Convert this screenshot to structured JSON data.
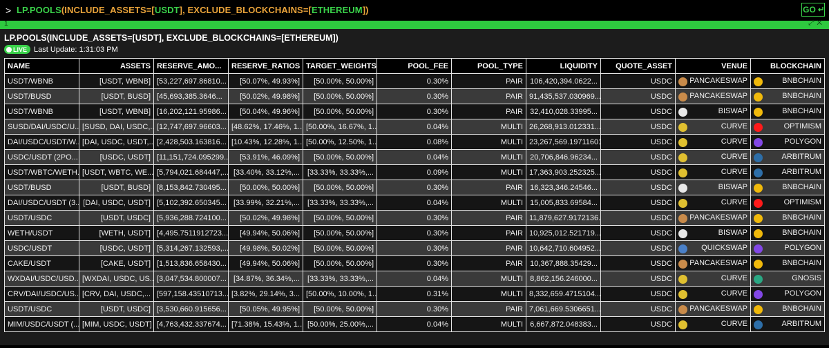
{
  "command": {
    "prompt": ">",
    "fn": "LP.POOLS",
    "open": "(",
    "p1": "INCLUDE_ASSETS=",
    "b1": "[",
    "v1": "USDT",
    "b1c": "]",
    "comma": ", ",
    "p2": "EXCLUDE_BLOCKCHAINS=",
    "b2": "[",
    "v2": "ETHEREUM",
    "b2c": "]",
    "close": ")",
    "go": "GO",
    "go_icon": "enter-arrow-icon"
  },
  "tab": {
    "number": "1"
  },
  "panel": {
    "title": "LP.POOLS(INCLUDE_ASSETS=[USDT], EXCLUDE_BLOCKCHAINS=[ETHEREUM])",
    "live": "LIVE",
    "last_update": "Last Update: 1:31:03 PM"
  },
  "colors": {
    "accent": "#3ad24a",
    "param": "#e9a33a"
  },
  "table": {
    "headers": [
      "NAME",
      "ASSETS",
      "RESERVE_AMO...",
      "RESERVE_RATIOS",
      "TARGET_WEIGHTS",
      "POOL_FEE",
      "POOL_TYPE",
      "LIQUIDITY",
      "QUOTE_ASSET",
      "VENUE",
      "BLOCKCHAIN"
    ],
    "rows": [
      [
        "USDT/WBNB",
        "[USDT, WBNB]",
        "[53,227,697.86810...",
        "[50.07%, 49.93%]",
        "[50.00%, 50.00%]",
        "0.30%",
        "PAIR",
        "106,420,394.0622...",
        "USDC",
        "PANCAKESWAP",
        "BNBCHAIN"
      ],
      [
        "USDT/BUSD",
        "[USDT, BUSD]",
        "[45,693,385.3646...",
        "[50.02%, 49.98%]",
        "[50.00%, 50.00%]",
        "0.30%",
        "PAIR",
        "91,435,537.030969...",
        "USDC",
        "PANCAKESWAP",
        "BNBCHAIN"
      ],
      [
        "USDT/WBNB",
        "[USDT, WBNB]",
        "[16,202,121.95986...",
        "[50.04%, 49.96%]",
        "[50.00%, 50.00%]",
        "0.30%",
        "PAIR",
        "32,410,028.33995...",
        "USDC",
        "BISWAP",
        "BNBCHAIN"
      ],
      [
        "SUSD/DAI/USDC/U...",
        "[SUSD, DAI, USDC,...",
        "[12,747,697.96603...",
        "[48.62%, 17.46%, 1...",
        "[50.00%, 16.67%, 1...",
        "0.04%",
        "MULTI",
        "26,268,913.012331...",
        "USDC",
        "CURVE",
        "OPTIMISM"
      ],
      [
        "DAI/USDC/USDT/W...",
        "[DAI, USDC, USDT,...",
        "[2,428,503.163816...",
        "[10.43%, 12.28%, 1...",
        "[50.00%, 12.50%, 1...",
        "0.08%",
        "MULTI",
        "23,267,569.19711601",
        "USDC",
        "CURVE",
        "POLYGON"
      ],
      [
        "USDC/USDT (2PO...",
        "[USDC, USDT]",
        "[11,151,724.095299...",
        "[53.91%, 46.09%]",
        "[50.00%, 50.00%]",
        "0.04%",
        "MULTI",
        "20,706,846.96234...",
        "USDC",
        "CURVE",
        "ARBITRUM"
      ],
      [
        "USDT/WBTC/WETH...",
        "[USDT, WBTC, WE...",
        "[5,794,021.684447,...",
        "[33.40%, 33.12%,...",
        "[33.33%, 33.33%,...",
        "0.09%",
        "MULTI",
        "17,363,903.252325...",
        "USDC",
        "CURVE",
        "ARBITRUM"
      ],
      [
        "USDT/BUSD",
        "[USDT, BUSD]",
        "[8,153,842.730495...",
        "[50.00%, 50.00%]",
        "[50.00%, 50.00%]",
        "0.30%",
        "PAIR",
        "16,323,346.24546...",
        "USDC",
        "BISWAP",
        "BNBCHAIN"
      ],
      [
        "DAI/USDC/USDT (3...",
        "[DAI, USDC, USDT]",
        "[5,102,392.650345...",
        "[33.99%, 32.21%,...",
        "[33.33%, 33.33%,...",
        "0.04%",
        "MULTI",
        "15,005,833.69584...",
        "USDC",
        "CURVE",
        "OPTIMISM"
      ],
      [
        "USDT/USDC",
        "[USDT, USDC]",
        "[5,936,288.724100...",
        "[50.02%, 49.98%]",
        "[50.00%, 50.00%]",
        "0.30%",
        "PAIR",
        "11,879,627.9172136...",
        "USDC",
        "PANCAKESWAP",
        "BNBCHAIN"
      ],
      [
        "WETH/USDT",
        "[WETH, USDT]",
        "[4,495.7511912723...",
        "[49.94%, 50.06%]",
        "[50.00%, 50.00%]",
        "0.30%",
        "PAIR",
        "10,925,012.521719...",
        "USDC",
        "BISWAP",
        "BNBCHAIN"
      ],
      [
        "USDC/USDT",
        "[USDC, USDT]",
        "[5,314,267.132593,...",
        "[49.98%, 50.02%]",
        "[50.00%, 50.00%]",
        "0.30%",
        "PAIR",
        "10,642,710.604952...",
        "USDC",
        "QUICKSWAP",
        "POLYGON"
      ],
      [
        "CAKE/USDT",
        "[CAKE, USDT]",
        "[1,513,836.658430...",
        "[49.94%, 50.06%]",
        "[50.00%, 50.00%]",
        "0.30%",
        "PAIR",
        "10,367,888.35429...",
        "USDC",
        "PANCAKESWAP",
        "BNBCHAIN"
      ],
      [
        "WXDAI/USDC/USD...",
        "[WXDAI, USDC, US...",
        "[3,047,534.800007...",
        "[34.87%, 36.34%,...",
        "[33.33%, 33.33%,...",
        "0.04%",
        "MULTI",
        "8,862,156.246000...",
        "USDC",
        "CURVE",
        "GNOSIS"
      ],
      [
        "CRV/DAI/USDC/US...",
        "[CRV, DAI, USDC,...",
        "[597,158.43510713...",
        "[3.82%, 29.14%, 3...",
        "[50.00%, 10.00%, 1...",
        "0.31%",
        "MULTI",
        "8,332,659.4715104...",
        "USDC",
        "CURVE",
        "POLYGON"
      ],
      [
        "USDT/USDC",
        "[USDT, USDC]",
        "[3,530,660.915656...",
        "[50.05%, 49.95%]",
        "[50.00%, 50.00%]",
        "0.30%",
        "PAIR",
        "7,061,669.5306651...",
        "USDC",
        "PANCAKESWAP",
        "BNBCHAIN"
      ],
      [
        "MIM/USDC/USDT (...",
        "[MIM, USDC, USDT]",
        "[4,763,432.337674...",
        "[71.38%, 15.43%, 1...",
        "[50.00%, 25.00%,...",
        "0.04%",
        "MULTI",
        "6,667,872.048383...",
        "USDC",
        "CURVE",
        "ARBITRUM"
      ]
    ]
  },
  "venue_icons": {
    "PANCAKESWAP": {
      "name": "pancakeswap-bunny-icon",
      "color": "#c98b4a"
    },
    "BISWAP": {
      "name": "biswap-logo-icon",
      "color": "#e8e8e8"
    },
    "CURVE": {
      "name": "curve-rainbow-icon",
      "color": "#e0c030"
    },
    "QUICKSWAP": {
      "name": "quickswap-logo-icon",
      "color": "#4a80c8"
    }
  },
  "chain_icons": {
    "BNBCHAIN": {
      "name": "bnb-chain-icon",
      "color": "#f0b90b"
    },
    "OPTIMISM": {
      "name": "optimism-icon",
      "color": "#ff1a1a"
    },
    "POLYGON": {
      "name": "polygon-icon",
      "color": "#8247e5"
    },
    "ARBITRUM": {
      "name": "arbitrum-icon",
      "color": "#2d6ea8"
    },
    "GNOSIS": {
      "name": "gnosis-icon",
      "color": "#2aa783"
    }
  }
}
